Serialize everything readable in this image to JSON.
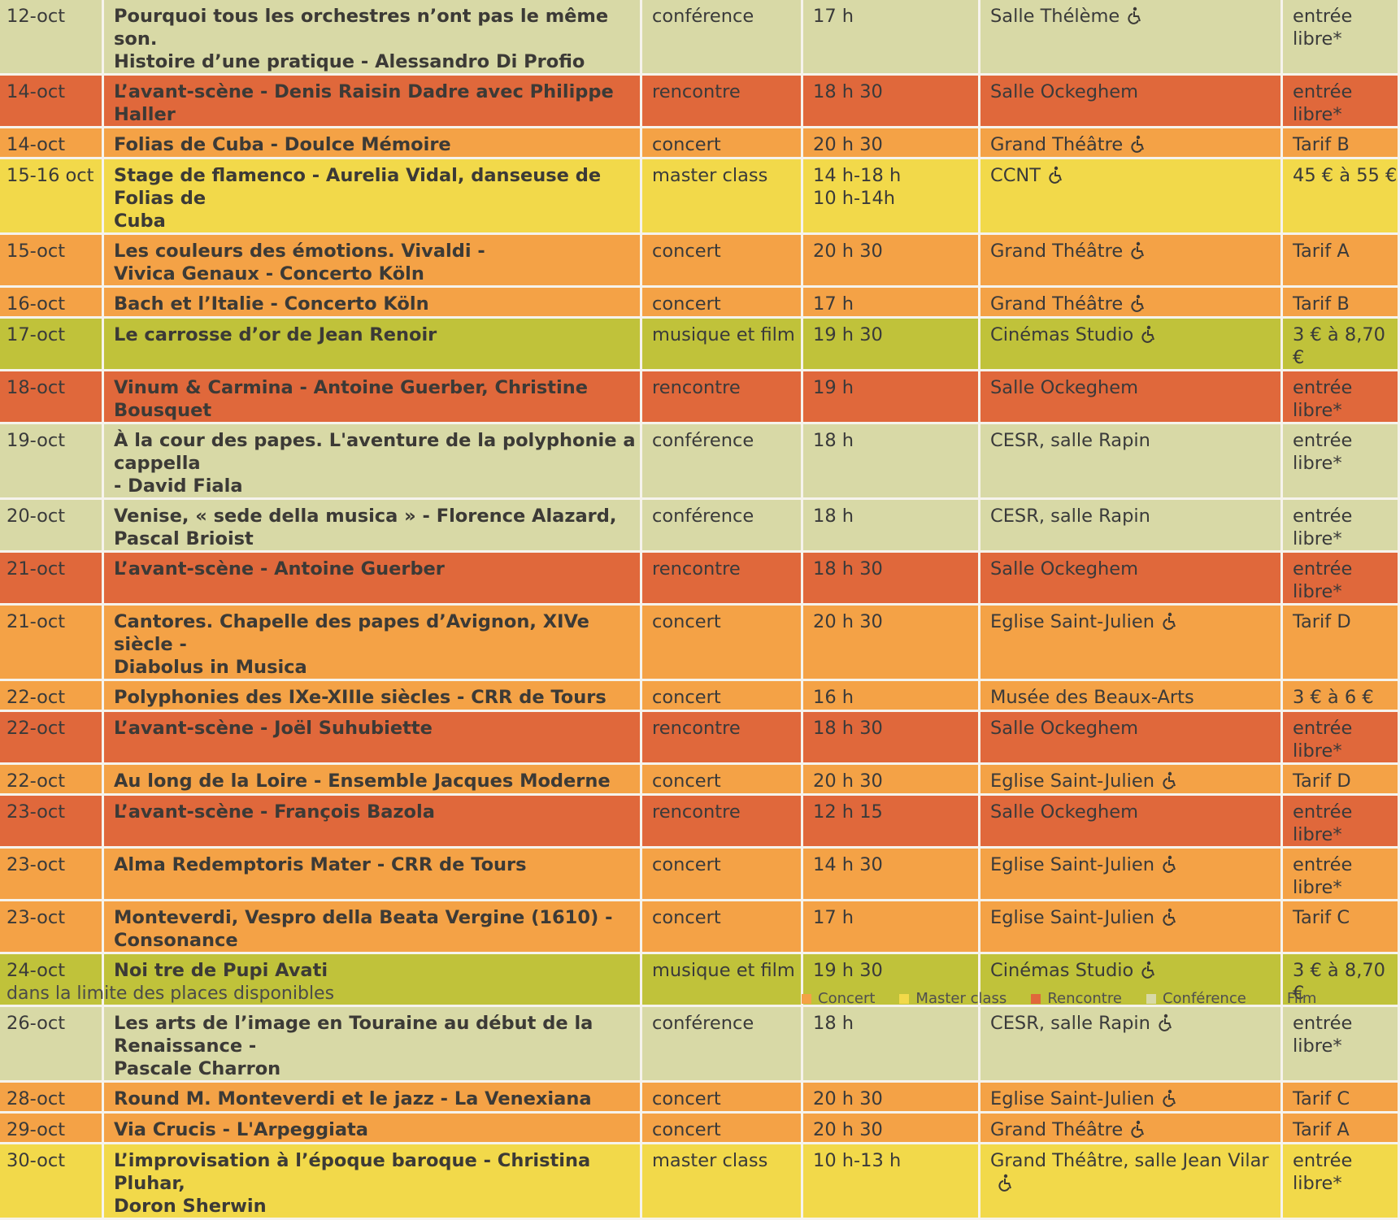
{
  "colors": {
    "concert": "#f4a246",
    "master": "#f2d94a",
    "rencontre": "#e0683b",
    "conference": "#d8d9a6",
    "film": "#c0c23a"
  },
  "rows": [
    {
      "kind": "conference",
      "date": "12-oct",
      "title": "Pourquoi tous les orchestres n’ont pas le même son.\nHistoire d’une pratique - Alessandro Di Profio",
      "type": "conférence",
      "time": "17 h",
      "venue": "Salle Thélème",
      "access": true,
      "price": "entrée libre*"
    },
    {
      "kind": "rencontre",
      "date": "14-oct",
      "title": "L’avant-scène - Denis Raisin Dadre avec Philippe Haller",
      "type": "rencontre",
      "time": "18 h 30",
      "venue": "Salle Ockeghem",
      "access": false,
      "price": "entrée libre*"
    },
    {
      "kind": "concert",
      "date": "14-oct",
      "title": "Folias de Cuba - Doulce Mémoire",
      "type": "concert",
      "time": "20 h 30",
      "venue": "Grand Théâtre",
      "access": true,
      "price": "Tarif B"
    },
    {
      "kind": "master",
      "date": "15-16 oct",
      "title": "Stage de flamenco - Aurelia Vidal, danseuse de Folias de\nCuba",
      "type": "master class",
      "time": "14 h-18 h\n10 h-14h",
      "venue": "CCNT",
      "access": true,
      "price": "45 € à 55 €"
    },
    {
      "kind": "concert",
      "date": "15-oct",
      "title": "Les couleurs des émotions. Vivaldi -\nVivica Genaux - Concerto Köln",
      "type": "concert",
      "time": "20 h 30",
      "venue": "Grand Théâtre",
      "access": true,
      "price": "Tarif A"
    },
    {
      "kind": "concert",
      "date": "16-oct",
      "title": "Bach et l’Italie - Concerto Köln",
      "type": "concert",
      "time": "17 h",
      "venue": "Grand Théâtre",
      "access": true,
      "price": "Tarif B"
    },
    {
      "kind": "film",
      "date": "17-oct",
      "title": "Le carrosse d’or de Jean Renoir",
      "type": "musique et film",
      "time": "19 h 30",
      "venue": "Cinémas Studio",
      "access": true,
      "price": "3 € à 8,70 €"
    },
    {
      "kind": "rencontre",
      "date": "18-oct",
      "title": "Vinum & Carmina - Antoine Guerber, Christine Bousquet",
      "type": "rencontre",
      "time": "19 h",
      "venue": "Salle Ockeghem",
      "access": false,
      "price": "entrée libre*"
    },
    {
      "kind": "conference",
      "date": "19-oct",
      "title": "À la cour des papes. L'aventure de la polyphonie a cappella\n- David Fiala",
      "type": "conférence",
      "time": "18 h",
      "venue": "CESR, salle Rapin",
      "access": false,
      "price": "entrée libre*"
    },
    {
      "kind": "conference",
      "date": "20-oct",
      "title": "Venise, « sede della musica » - Florence Alazard,\nPascal Brioist",
      "type": "conférence",
      "time": "18 h",
      "venue": "CESR, salle Rapin",
      "access": false,
      "price": "entrée libre*"
    },
    {
      "kind": "rencontre",
      "date": "21-oct",
      "title": "L’avant-scène - Antoine Guerber",
      "type": "rencontre",
      "time": "18 h 30",
      "venue": "Salle Ockeghem",
      "access": false,
      "price": "entrée libre*"
    },
    {
      "kind": "concert",
      "date": "21-oct",
      "title": "Cantores. Chapelle des papes d’Avignon, XIVe siècle -\nDiabolus in Musica",
      "type": "concert",
      "time": "20 h 30",
      "venue": "Eglise Saint-Julien",
      "access": true,
      "price": "Tarif D"
    },
    {
      "kind": "concert",
      "date": "22-oct",
      "title": "Polyphonies des IXe-XIIIe siècles - CRR de Tours",
      "type": "concert",
      "time": "16 h",
      "venue": "Musée des Beaux-Arts",
      "access": false,
      "price": "3 € à 6 €"
    },
    {
      "kind": "rencontre",
      "date": "22-oct",
      "title": "L’avant-scène - Joël Suhubiette",
      "type": "rencontre",
      "time": "18 h 30",
      "venue": "Salle Ockeghem",
      "access": false,
      "price": "entrée libre*"
    },
    {
      "kind": "concert",
      "date": "22-oct",
      "title": "Au long de la Loire - Ensemble Jacques Moderne",
      "type": "concert",
      "time": "20 h 30",
      "venue": "Eglise Saint-Julien",
      "access": true,
      "price": "Tarif D"
    },
    {
      "kind": "rencontre",
      "date": "23-oct",
      "title": "L’avant-scène - François Bazola",
      "type": "rencontre",
      "time": "12 h 15",
      "venue": "Salle Ockeghem",
      "access": false,
      "price": "entrée libre*"
    },
    {
      "kind": "concert",
      "date": "23-oct",
      "title": "Alma Redemptoris Mater - CRR de Tours",
      "type": "concert",
      "time": "14 h 30",
      "venue": "Eglise Saint-Julien",
      "access": true,
      "price": "entrée libre*"
    },
    {
      "kind": "concert",
      "date": "23-oct",
      "title": "Monteverdi, Vespro della Beata Vergine (1610) - Consonance",
      "type": "concert",
      "time": "17 h",
      "venue": "Eglise Saint-Julien",
      "access": true,
      "price": "Tarif C"
    },
    {
      "kind": "film",
      "date": "24-oct",
      "title": "Noi tre de Pupi Avati",
      "type": "musique et film",
      "time": "19 h 30",
      "venue": "Cinémas Studio",
      "access": true,
      "price": "3 € à 8,70 €"
    },
    {
      "kind": "conference",
      "date": "26-oct",
      "title": "Les arts de l’image en Touraine au début de la Renaissance -\nPascale Charron",
      "type": "conférence",
      "time": "18 h",
      "venue": "CESR, salle Rapin",
      "access": true,
      "price": "entrée libre*"
    },
    {
      "kind": "concert",
      "date": "28-oct",
      "title": "Round M. Monteverdi et le jazz - La Venexiana",
      "type": "concert",
      "time": "20 h 30",
      "venue": "Eglise Saint-Julien",
      "access": true,
      "price": "Tarif C"
    },
    {
      "kind": "concert",
      "date": "29-oct",
      "title": "Via Crucis - L'Arpeggiata",
      "type": "concert",
      "time": "20 h 30",
      "venue": "Grand Théâtre",
      "access": true,
      "price": "Tarif A"
    },
    {
      "kind": "master",
      "date": "30-oct",
      "title": "L’improvisation à l’époque baroque - Christina Pluhar,\nDoron Sherwin",
      "type": "master class",
      "time": "10 h-13 h",
      "venue": "Grand Théâtre, salle Jean Vilar",
      "access": true,
      "price": "entrée libre*"
    }
  ],
  "footnote": "dans la limite des places disponibles",
  "legend": [
    {
      "label": "Concert",
      "color": "#f4a246"
    },
    {
      "label": "Master class",
      "color": "#f2d94a"
    },
    {
      "label": "Rencontre",
      "color": "#e0683b"
    },
    {
      "label": "Conférence",
      "color": "#d8d9a6"
    },
    {
      "label": "Film",
      "color": "#c0c23a"
    }
  ]
}
